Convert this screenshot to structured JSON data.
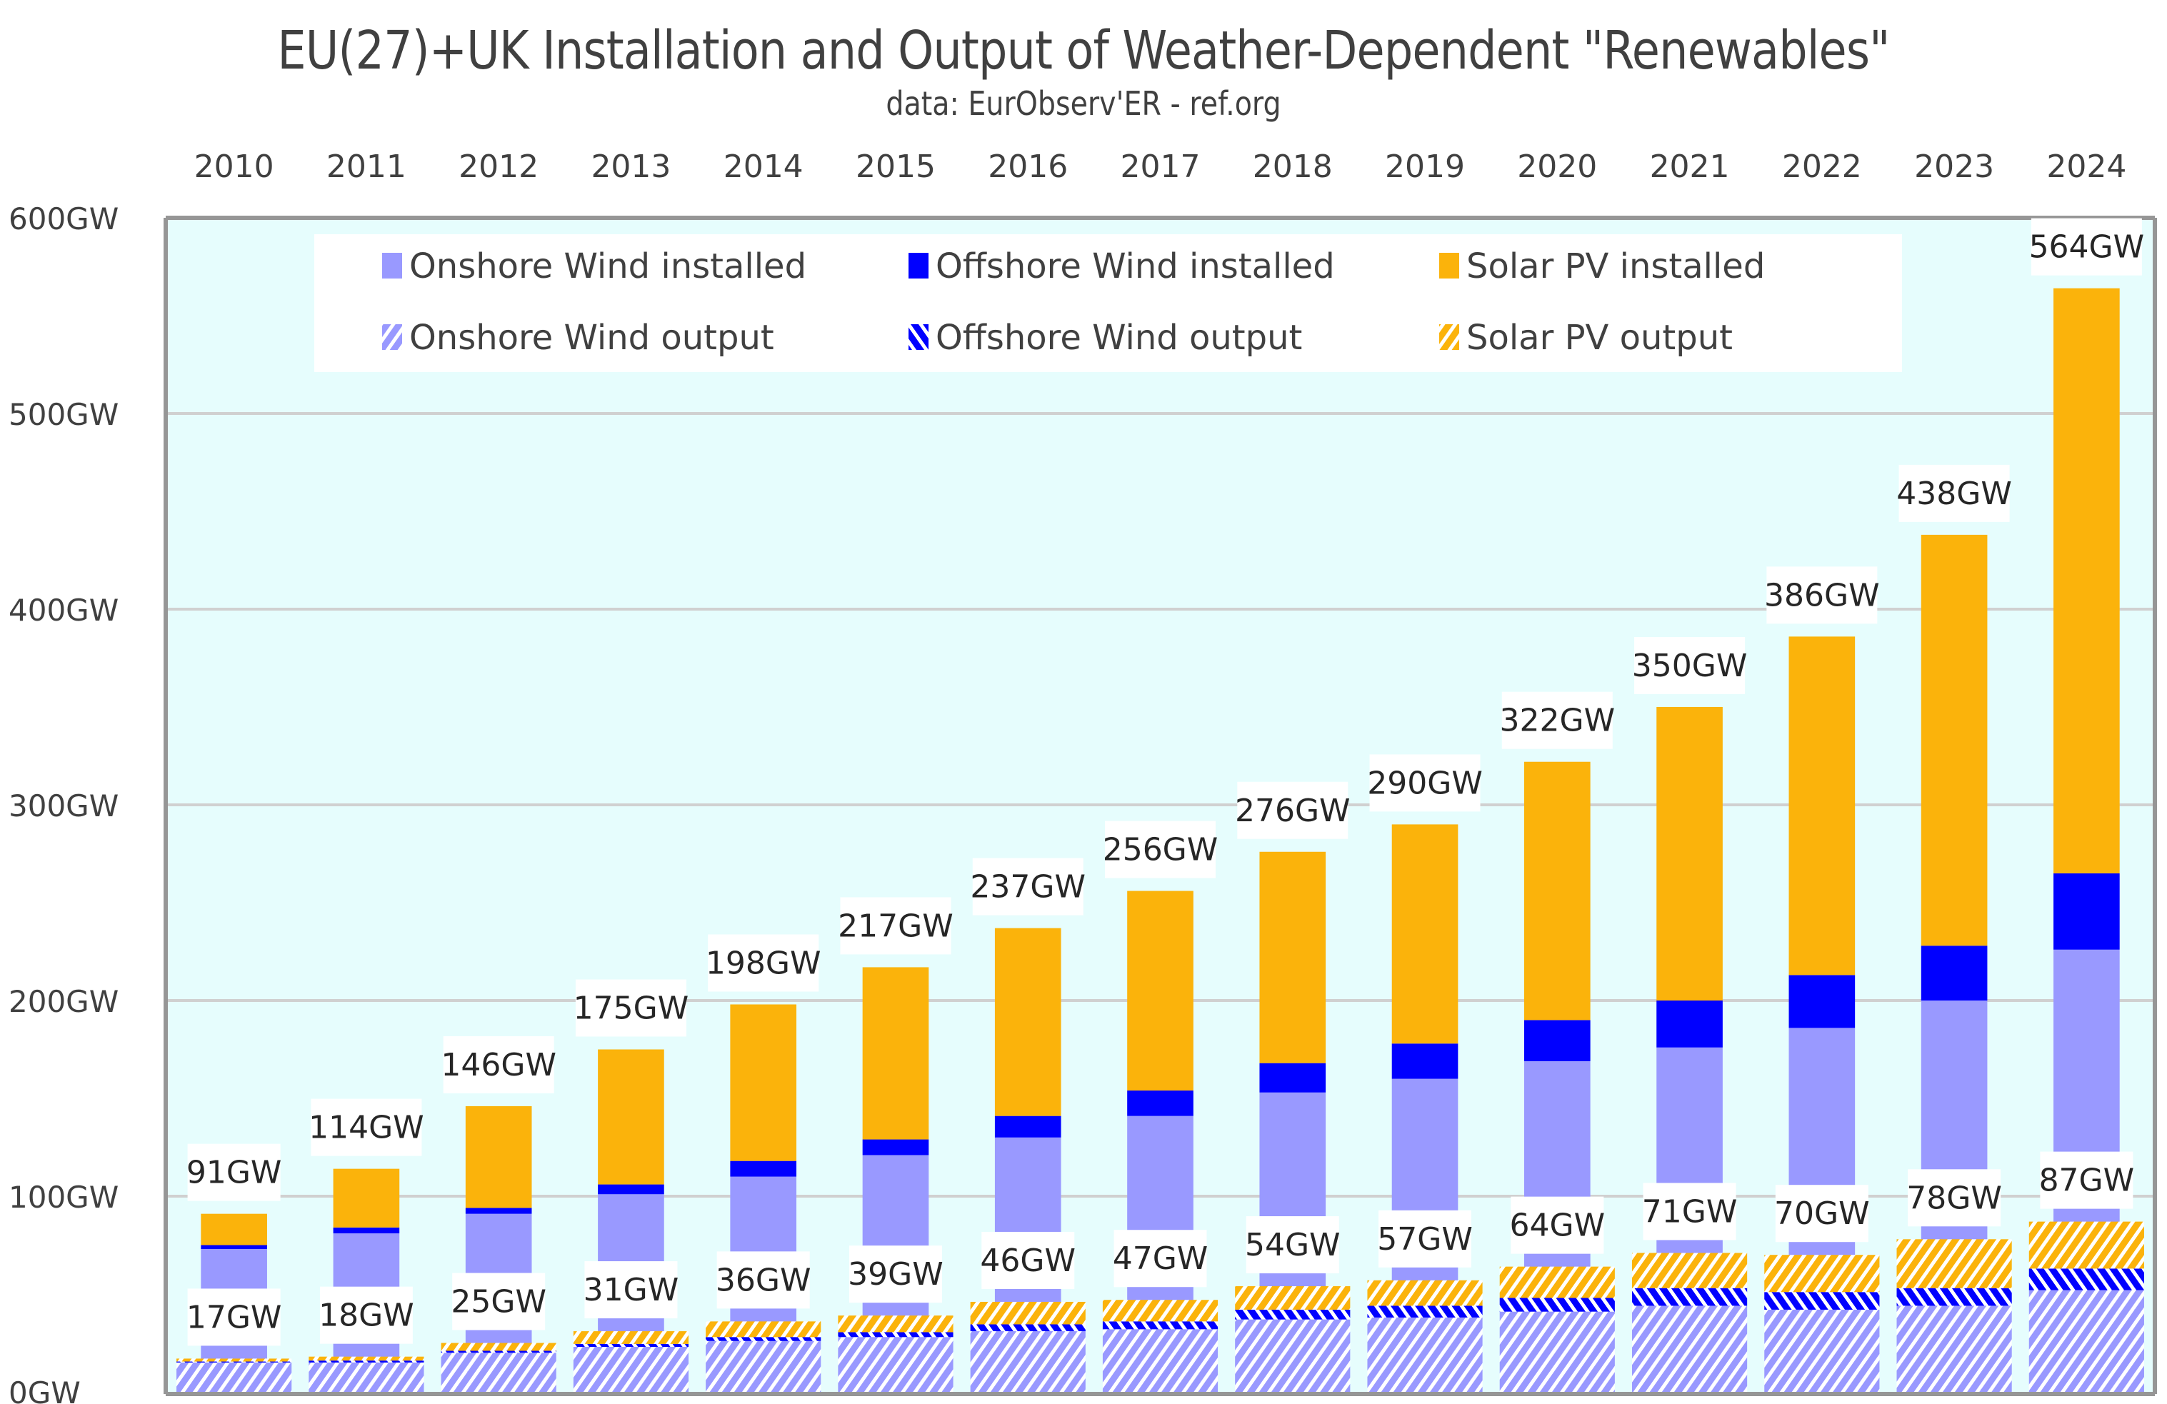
{
  "title": "EU(27)+UK  Installation and Output of Weather-Dependent \"Renewables\"",
  "subtitle": "data:  EurObserv'ER - ref.org",
  "chart_data": {
    "type": "bar",
    "stacked": true,
    "title": "EU(27)+UK  Installation and Output of Weather-Dependent \"Renewables\"",
    "subtitle": "data:  EurObserv'ER - ref.org",
    "xlabel": "",
    "ylabel": "",
    "categories": [
      "2010",
      "2011",
      "2012",
      "2013",
      "2014",
      "2015",
      "2016",
      "2017",
      "2018",
      "2019",
      "2020",
      "2021",
      "2022",
      "2023",
      "2024"
    ],
    "x_axis_position": "top",
    "ylim": [
      0,
      600
    ],
    "yticks": [
      0,
      100,
      200,
      300,
      400,
      500,
      600
    ],
    "ytick_labels": [
      "0GW",
      "100GW",
      "200GW",
      "300GW",
      "400GW",
      "500GW",
      "600GW"
    ],
    "grid": true,
    "legend_position": "top",
    "colors": {
      "onshore": "#9999ff",
      "offshore": "#0000ff",
      "solar": "#fbb30b",
      "plot_background": "#e6fdfd"
    },
    "installed": {
      "series": [
        {
          "name": "Onshore Wind installed",
          "values": [
            73,
            81,
            91,
            101,
            110,
            121,
            130,
            141,
            153,
            160,
            169,
            176,
            186,
            200,
            226
          ]
        },
        {
          "name": "Offshore Wind installed",
          "values": [
            2,
            3,
            3,
            5,
            8,
            8,
            11,
            13,
            15,
            18,
            21,
            24,
            27,
            28,
            39
          ]
        },
        {
          "name": "Solar PV installed",
          "values": [
            16,
            30,
            52,
            69,
            80,
            88,
            96,
            102,
            108,
            112,
            132,
            150,
            173,
            210,
            299
          ]
        }
      ],
      "totals": [
        91,
        114,
        146,
        175,
        198,
        217,
        237,
        256,
        276,
        290,
        322,
        350,
        386,
        438,
        564
      ],
      "total_labels": [
        "91GW",
        "114GW",
        "146GW",
        "175GW",
        "198GW",
        "217GW",
        "237GW",
        "256GW",
        "276GW",
        "290GW",
        "322GW",
        "350GW",
        "386GW",
        "438GW",
        "564GW"
      ]
    },
    "output": {
      "series": [
        {
          "name": "Onshore Wind output",
          "values": [
            15,
            15,
            20,
            23,
            26,
            28,
            31,
            32,
            37,
            38,
            41,
            44,
            42,
            44,
            52
          ]
        },
        {
          "name": "Offshore Wind output",
          "values": [
            0.5,
            1,
            1,
            1.5,
            2,
            2.5,
            3.5,
            4,
            5,
            6,
            7,
            9,
            9,
            9,
            11
          ]
        },
        {
          "name": "Solar PV output",
          "values": [
            1.5,
            2,
            4,
            6.5,
            8,
            8.5,
            11.5,
            11,
            12,
            13,
            16,
            18,
            19,
            25,
            24
          ]
        }
      ],
      "totals": [
        17,
        18,
        25,
        31,
        36,
        39,
        46,
        47,
        54,
        57,
        64,
        71,
        70,
        78,
        87
      ],
      "total_labels": [
        "17GW",
        "18GW",
        "25GW",
        "31GW",
        "36GW",
        "39GW",
        "46GW",
        "47GW",
        "54GW",
        "57GW",
        "64GW",
        "71GW",
        "70GW",
        "78GW",
        "87GW"
      ]
    },
    "legend": [
      {
        "label": "Onshore Wind installed",
        "swatch": "solid",
        "color": "#9999ff"
      },
      {
        "label": "Offshore Wind installed",
        "swatch": "solid",
        "color": "#0000ff"
      },
      {
        "label": "Solar PV installed",
        "swatch": "solid",
        "color": "#fbb30b"
      },
      {
        "label": "Onshore Wind output",
        "swatch": "hatched",
        "color": "#9999ff"
      },
      {
        "label": "Offshore Wind output",
        "swatch": "hatched",
        "color": "#0000ff"
      },
      {
        "label": "Solar PV output",
        "swatch": "hatched",
        "color": "#fbb30b"
      }
    ]
  }
}
